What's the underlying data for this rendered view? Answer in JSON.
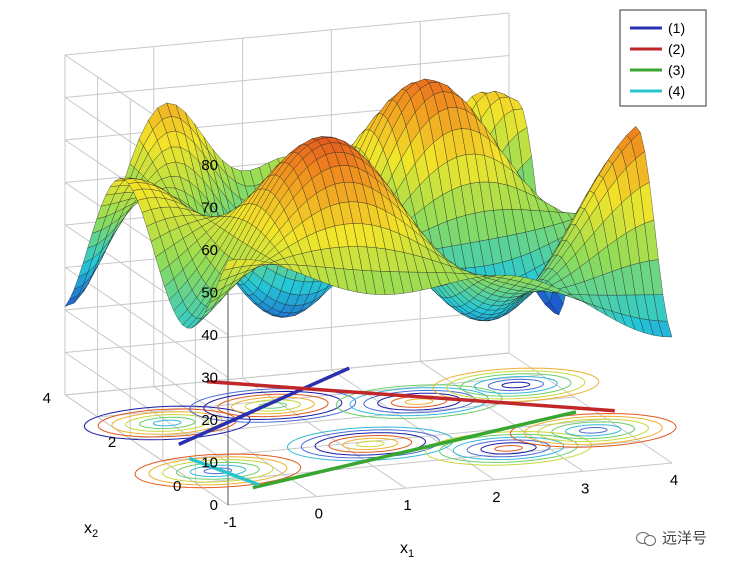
{
  "chart_data": {
    "type": "surface3d",
    "title": "",
    "xlabel": "x",
    "xlabel_sub": "1",
    "ylabel": "x",
    "ylabel_sub": "2",
    "zlabel": "",
    "xlim": [
      -1,
      4
    ],
    "ylim": [
      -1,
      4
    ],
    "zlim": [
      0,
      80
    ],
    "x_ticks": [
      "-1",
      "0",
      "1",
      "2",
      "3",
      "4"
    ],
    "y_ticks": [
      "0",
      "2",
      "4"
    ],
    "z_ticks": [
      "0",
      "10",
      "20",
      "30",
      "40",
      "50",
      "60",
      "70",
      "80"
    ],
    "grid": true,
    "legend_position": "top-right",
    "colormap": [
      "#1a10a8",
      "#1e5fd0",
      "#25c8d8",
      "#8edc5a",
      "#f2e52a",
      "#f08a1e",
      "#d41e1e"
    ],
    "series": [
      {
        "name": "(1)",
        "color": "#2a2fb0",
        "points": [
          [
            -0.6,
            1.6
          ],
          [
            2.2,
            4.0
          ]
        ]
      },
      {
        "name": "(2)",
        "color": "#c0262a",
        "points": [
          [
            0.6,
            4.0
          ],
          [
            4.2,
            1.3
          ]
        ]
      },
      {
        "name": "(3)",
        "color": "#3aa632",
        "points": [
          [
            -0.5,
            -0.4
          ],
          [
            3.8,
            1.4
          ]
        ]
      },
      {
        "name": "(4)",
        "color": "#2bc4cc",
        "points": [
          [
            -0.7,
            1.0
          ],
          [
            -0.4,
            -0.3
          ]
        ]
      }
    ]
  }
}
